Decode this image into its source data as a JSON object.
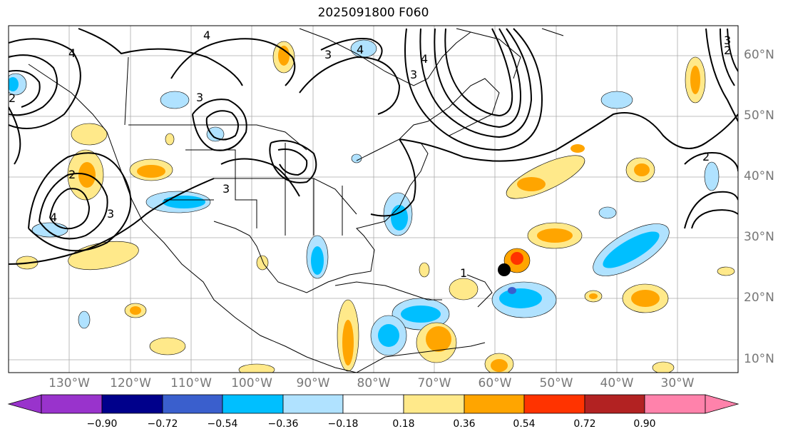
{
  "title": "2025091800 F060",
  "lat_labels": [
    "60°N",
    "50°N",
    "40°N",
    "30°N",
    "20°N",
    "10°N"
  ],
  "lon_labels": [
    "130°W",
    "120°W",
    "110°W",
    "100°W",
    "90°W",
    "80°W",
    "70°W",
    "60°W",
    "50°W",
    "40°W",
    "30°W"
  ],
  "contour_labels": [
    "1",
    "2",
    "3",
    "4"
  ],
  "colorbar": {
    "ticks": [
      "−0.90",
      "−0.72",
      "−0.54",
      "−0.36",
      "−0.18",
      "0.18",
      "0.36",
      "0.54",
      "0.72",
      "0.90"
    ],
    "colors": [
      "#9933cc",
      "#00008b",
      "#3a5fcd",
      "#00bfff",
      "#b0e2ff",
      "#ffffff",
      "#ffe98a",
      "#ffa500",
      "#ff3300",
      "#b22222",
      "#ff82ab"
    ]
  },
  "marker": "storm-position-dot"
}
